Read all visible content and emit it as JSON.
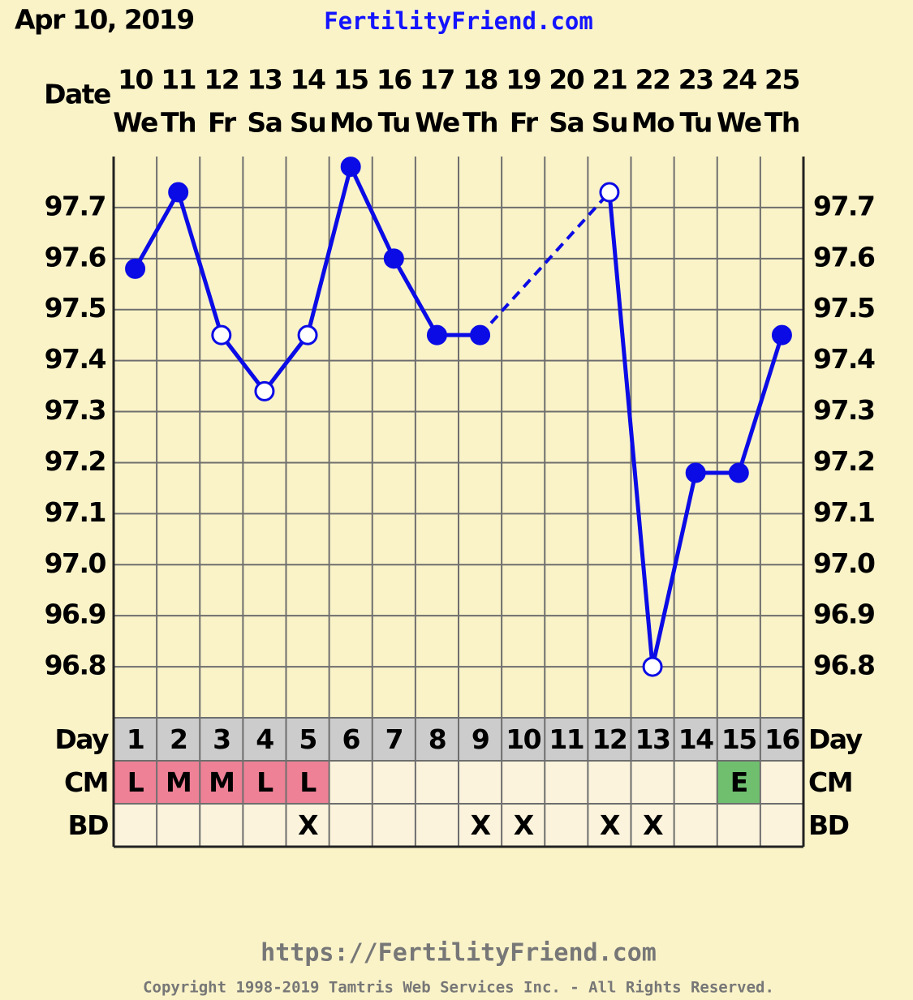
{
  "chart_data": {
    "type": "line",
    "title": "Apr 10, 2019",
    "site": "FertilityFriend.com",
    "date_label": "Date",
    "dates": [
      10,
      11,
      12,
      13,
      14,
      15,
      16,
      17,
      18,
      19,
      20,
      21,
      22,
      23,
      24,
      25
    ],
    "weekdays": [
      "We",
      "Th",
      "Fr",
      "Sa",
      "Su",
      "Mo",
      "Tu",
      "We",
      "Th",
      "Fr",
      "Sa",
      "Su",
      "Mo",
      "Tu",
      "We",
      "Th"
    ],
    "day_label": "Day",
    "categories": [
      1,
      2,
      3,
      4,
      5,
      6,
      7,
      8,
      9,
      10,
      11,
      12,
      13,
      14,
      15,
      16
    ],
    "series": [
      {
        "color": "#0b0be6",
        "values": [
          97.58,
          97.73,
          97.45,
          97.34,
          97.45,
          97.78,
          97.6,
          97.45,
          97.45,
          null,
          null,
          97.73,
          96.8,
          97.18,
          97.18,
          97.45
        ],
        "open": [
          false,
          false,
          true,
          true,
          true,
          false,
          false,
          false,
          false,
          false,
          false,
          true,
          true,
          false,
          false,
          false
        ]
      }
    ],
    "ylim": [
      96.7,
      97.8
    ],
    "yticks": [
      96.8,
      96.9,
      {
        "value": 97,
        "label": "97.0"
      },
      97.1,
      97.2,
      97.3,
      97.4,
      97.5,
      97.6,
      97.7
    ],
    "grid": true,
    "cm_label": "CM",
    "cm": [
      "L",
      "M",
      "M",
      "L",
      "L",
      null,
      null,
      null,
      null,
      null,
      null,
      null,
      null,
      null,
      "E",
      null
    ],
    "cm_colors": {
      "L": "#ee8196",
      "M": "#ee8196",
      "E": "#6fbf6f"
    },
    "bd_label": "BD",
    "bd": [
      null,
      null,
      null,
      null,
      "X",
      null,
      null,
      null,
      "X",
      "X",
      null,
      "X",
      "X",
      null,
      null,
      null
    ],
    "footer_url": "https://FertilityFriend.com",
    "copyright": "Copyright 1998-2019 Tamtris Web Services Inc. - All Rights Reserved."
  }
}
